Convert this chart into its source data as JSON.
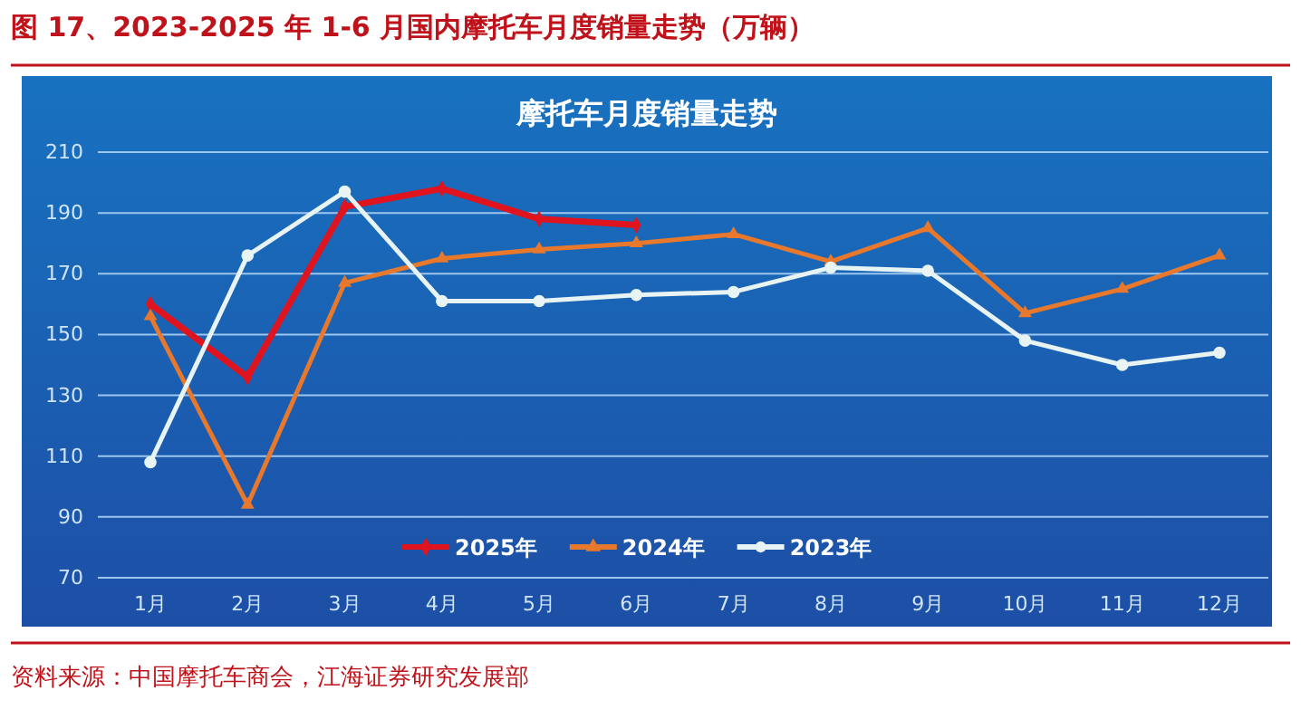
{
  "chart_data": {
    "type": "line",
    "title": "图 17、2023-2025 年 1-6 月国内摩托车月度销量走势（万辆）",
    "subtitle": "摩托车月度销量走势",
    "categories": [
      "1月",
      "2月",
      "3月",
      "4月",
      "5月",
      "6月",
      "7月",
      "8月",
      "9月",
      "10月",
      "11月",
      "12月"
    ],
    "series": [
      {
        "name": "2025年",
        "color": "#e0141e",
        "marker": "diamond",
        "values": [
          160,
          136,
          192,
          198,
          188,
          186,
          null,
          null,
          null,
          null,
          null,
          null
        ]
      },
      {
        "name": "2024年",
        "color": "#e8792c",
        "marker": "triangle",
        "values": [
          156,
          94,
          167,
          175,
          178,
          180,
          183,
          174,
          185,
          157,
          165,
          176
        ]
      },
      {
        "name": "2023年",
        "color": "#e8f4f4",
        "marker": "circle",
        "values": [
          108,
          176,
          197,
          161,
          161,
          163,
          164,
          172,
          171,
          148,
          140,
          144
        ]
      }
    ],
    "ylim": [
      70,
      210
    ],
    "yticks": [
      70,
      90,
      110,
      130,
      150,
      170,
      190,
      210
    ],
    "grid": "y",
    "legend": "bottom",
    "annotations": [
      "资料来源：中国摩托车商会，江海证券研究发展部"
    ]
  }
}
